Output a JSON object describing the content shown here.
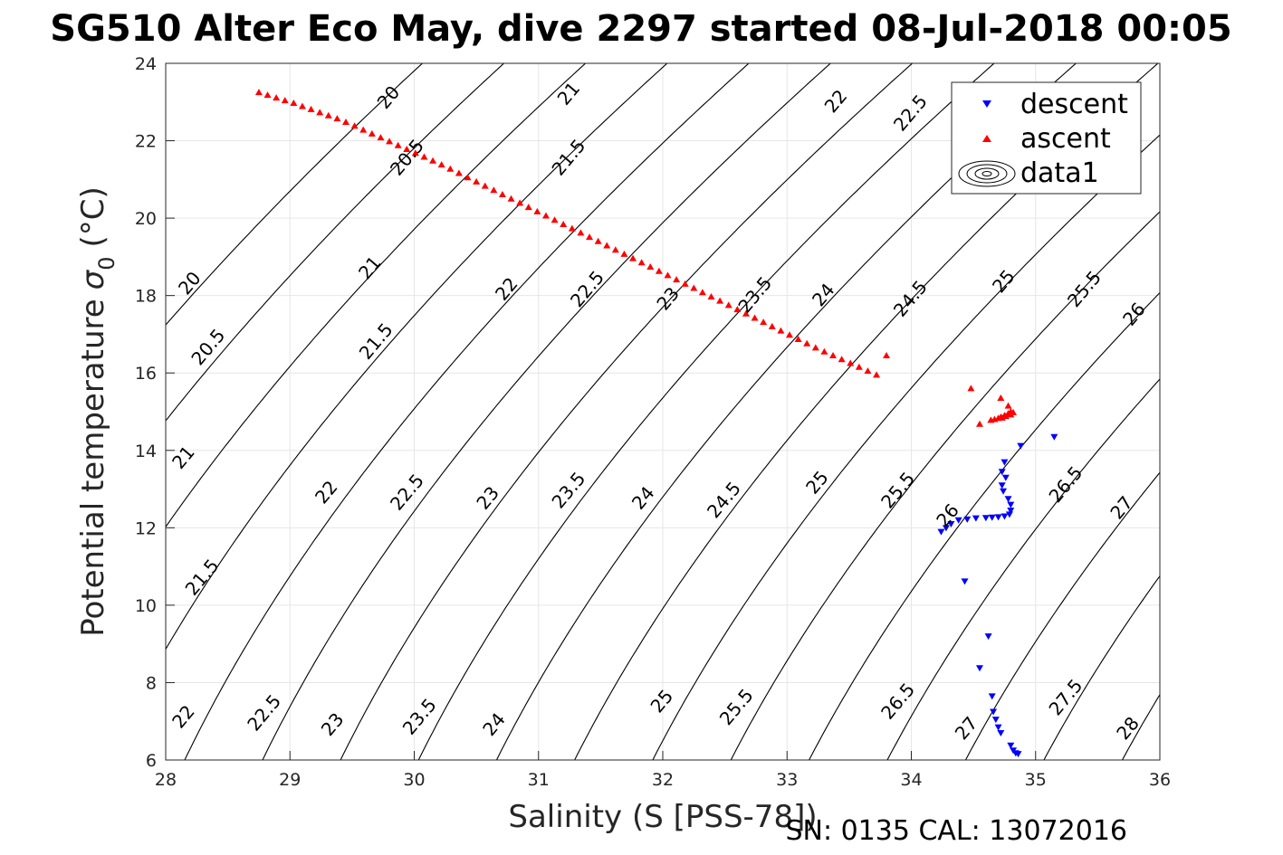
{
  "chart_data": {
    "type": "scatter",
    "title": "SG510 Alter Eco May, dive 2297 started 08-Jul-2018 00:05",
    "xlabel": "Salinity (S [PSS-78])",
    "ylabel": "Potential temperature",
    "ylabel_symbol": "σ",
    "ylabel_subscript": "0",
    "ylabel_unit": "(°C)",
    "xlim": [
      28,
      36
    ],
    "ylim": [
      6,
      24
    ],
    "xticks": [
      28,
      29,
      30,
      31,
      32,
      33,
      34,
      35,
      36
    ],
    "yticks": [
      6,
      8,
      10,
      12,
      14,
      16,
      18,
      20,
      22,
      24
    ],
    "grid": true,
    "legend_position": "top-right",
    "footer": "SN: 0135  CAL: 13072016",
    "legend": [
      {
        "label": "descent",
        "marker": "triangle-down",
        "color": "#0000ff"
      },
      {
        "label": "ascent",
        "marker": "triangle-up",
        "color": "#ff0000"
      },
      {
        "label": "data1",
        "marker": "contour",
        "color": "#000000"
      }
    ],
    "contour_levels": [
      20,
      20.5,
      21,
      21.5,
      22,
      22.5,
      23,
      23.5,
      24,
      24.5,
      25,
      25.5,
      26,
      26.5,
      27,
      27.5,
      28
    ],
    "contour_labels": [
      {
        "text": "20",
        "x": 29.8,
        "y": 23.1
      },
      {
        "text": "21",
        "x": 31.25,
        "y": 23.2
      },
      {
        "text": "22",
        "x": 33.4,
        "y": 23.0
      },
      {
        "text": "22.5",
        "x": 34.0,
        "y": 22.7
      },
      {
        "text": "23",
        "x": 34.8,
        "y": 22.1
      },
      {
        "text": "22",
        "x": 35.3,
        "y": 22.0
      },
      {
        "text": "20.5",
        "x": 29.95,
        "y": 21.55
      },
      {
        "text": "21.5",
        "x": 31.25,
        "y": 21.55
      },
      {
        "text": "20",
        "x": 28.2,
        "y": 18.3
      },
      {
        "text": "21",
        "x": 29.65,
        "y": 18.7
      },
      {
        "text": "22",
        "x": 30.75,
        "y": 18.15
      },
      {
        "text": "22.5",
        "x": 31.4,
        "y": 18.15
      },
      {
        "text": "23",
        "x": 32.05,
        "y": 17.9
      },
      {
        "text": "23.5",
        "x": 32.75,
        "y": 18.0
      },
      {
        "text": "24",
        "x": 33.3,
        "y": 18.0
      },
      {
        "text": "24.5",
        "x": 34.0,
        "y": 17.9
      },
      {
        "text": "25",
        "x": 34.75,
        "y": 18.35
      },
      {
        "text": "25.5",
        "x": 35.4,
        "y": 18.15
      },
      {
        "text": "26",
        "x": 35.8,
        "y": 17.5
      },
      {
        "text": "20.5",
        "x": 28.35,
        "y": 16.65
      },
      {
        "text": "21.5",
        "x": 29.7,
        "y": 16.8
      },
      {
        "text": "21",
        "x": 28.15,
        "y": 13.8
      },
      {
        "text": "22",
        "x": 29.3,
        "y": 12.9
      },
      {
        "text": "22.5",
        "x": 29.95,
        "y": 12.9
      },
      {
        "text": "23",
        "x": 30.6,
        "y": 12.75
      },
      {
        "text": "23.5",
        "x": 31.25,
        "y": 12.95
      },
      {
        "text": "24",
        "x": 31.85,
        "y": 12.75
      },
      {
        "text": "24.5",
        "x": 32.5,
        "y": 12.7
      },
      {
        "text": "25",
        "x": 33.25,
        "y": 13.15
      },
      {
        "text": "25.5",
        "x": 33.9,
        "y": 12.95
      },
      {
        "text": "26",
        "x": 34.3,
        "y": 12.3
      },
      {
        "text": "26.5",
        "x": 35.25,
        "y": 13.1
      },
      {
        "text": "27",
        "x": 35.7,
        "y": 12.5
      },
      {
        "text": "21.5",
        "x": 28.3,
        "y": 10.7
      },
      {
        "text": "22",
        "x": 28.15,
        "y": 7.1
      },
      {
        "text": "22.5",
        "x": 28.8,
        "y": 7.2
      },
      {
        "text": "23",
        "x": 29.35,
        "y": 6.9
      },
      {
        "text": "23.5",
        "x": 30.05,
        "y": 7.1
      },
      {
        "text": "24",
        "x": 30.65,
        "y": 6.9
      },
      {
        "text": "25",
        "x": 32.0,
        "y": 7.5
      },
      {
        "text": "25.5",
        "x": 32.6,
        "y": 7.35
      },
      {
        "text": "26.5",
        "x": 33.9,
        "y": 7.5
      },
      {
        "text": "27",
        "x": 34.45,
        "y": 6.8
      },
      {
        "text": "27.5",
        "x": 35.25,
        "y": 7.6
      },
      {
        "text": "28",
        "x": 35.75,
        "y": 6.8
      }
    ],
    "series": [
      {
        "name": "descent",
        "color": "#0000ff",
        "marker": "triangle-down",
        "points": [
          [
            35.15,
            14.35
          ],
          [
            34.88,
            14.12
          ],
          [
            34.75,
            13.7
          ],
          [
            34.73,
            13.45
          ],
          [
            34.76,
            13.3
          ],
          [
            34.73,
            13.1
          ],
          [
            34.74,
            12.95
          ],
          [
            34.78,
            12.75
          ],
          [
            34.8,
            12.6
          ],
          [
            34.8,
            12.45
          ],
          [
            34.79,
            12.35
          ],
          [
            34.75,
            12.3
          ],
          [
            34.7,
            12.28
          ],
          [
            34.65,
            12.27
          ],
          [
            34.6,
            12.26
          ],
          [
            34.52,
            12.25
          ],
          [
            34.45,
            12.22
          ],
          [
            34.38,
            12.2
          ],
          [
            34.32,
            12.1
          ],
          [
            34.28,
            12.0
          ],
          [
            34.24,
            11.9
          ],
          [
            34.43,
            10.62
          ],
          [
            34.62,
            9.2
          ],
          [
            34.55,
            8.38
          ],
          [
            34.65,
            7.65
          ],
          [
            34.66,
            7.25
          ],
          [
            34.68,
            7.05
          ],
          [
            34.7,
            6.85
          ],
          [
            34.72,
            6.7
          ],
          [
            34.8,
            6.38
          ],
          [
            34.82,
            6.25
          ],
          [
            34.84,
            6.18
          ],
          [
            34.86,
            6.16
          ]
        ]
      },
      {
        "name": "ascent",
        "color": "#ff0000",
        "marker": "triangle-up",
        "points": [
          [
            28.75,
            23.25
          ],
          [
            28.82,
            23.18
          ],
          [
            28.89,
            23.11
          ],
          [
            28.96,
            23.04
          ],
          [
            29.03,
            22.97
          ],
          [
            29.1,
            22.89
          ],
          [
            29.17,
            22.81
          ],
          [
            29.24,
            22.73
          ],
          [
            29.31,
            22.65
          ],
          [
            29.38,
            22.57
          ],
          [
            29.45,
            22.48
          ],
          [
            29.52,
            22.38
          ],
          [
            29.59,
            22.28
          ],
          [
            29.66,
            22.18
          ],
          [
            29.73,
            22.08
          ],
          [
            29.8,
            21.98
          ],
          [
            29.87,
            21.88
          ],
          [
            29.94,
            21.78
          ],
          [
            30.01,
            21.68
          ],
          [
            30.08,
            21.58
          ],
          [
            30.15,
            21.48
          ],
          [
            30.22,
            21.38
          ],
          [
            30.29,
            21.27
          ],
          [
            30.36,
            21.16
          ],
          [
            30.43,
            21.05
          ],
          [
            30.5,
            20.94
          ],
          [
            30.57,
            20.83
          ],
          [
            30.64,
            20.72
          ],
          [
            30.71,
            20.61
          ],
          [
            30.78,
            20.5
          ],
          [
            30.85,
            20.39
          ],
          [
            30.92,
            20.28
          ],
          [
            30.99,
            20.17
          ],
          [
            31.06,
            20.06
          ],
          [
            31.13,
            19.95
          ],
          [
            31.2,
            19.84
          ],
          [
            31.27,
            19.73
          ],
          [
            31.34,
            19.62
          ],
          [
            31.41,
            19.51
          ],
          [
            31.48,
            19.4
          ],
          [
            31.55,
            19.29
          ],
          [
            31.62,
            19.18
          ],
          [
            31.69,
            19.07
          ],
          [
            31.76,
            18.96
          ],
          [
            31.83,
            18.85
          ],
          [
            31.9,
            18.74
          ],
          [
            31.97,
            18.63
          ],
          [
            32.04,
            18.52
          ],
          [
            32.11,
            18.41
          ],
          [
            32.18,
            18.3
          ],
          [
            32.25,
            18.19
          ],
          [
            32.32,
            18.08
          ],
          [
            32.39,
            17.97
          ],
          [
            32.46,
            17.86
          ],
          [
            32.53,
            17.75
          ],
          [
            32.6,
            17.64
          ],
          [
            32.67,
            17.53
          ],
          [
            32.74,
            17.42
          ],
          [
            32.81,
            17.31
          ],
          [
            32.88,
            17.2
          ],
          [
            32.95,
            17.09
          ],
          [
            33.02,
            16.98
          ],
          [
            33.09,
            16.87
          ],
          [
            33.16,
            16.76
          ],
          [
            33.23,
            16.65
          ],
          [
            33.3,
            16.55
          ],
          [
            33.37,
            16.45
          ],
          [
            33.44,
            16.35
          ],
          [
            33.51,
            16.25
          ],
          [
            33.58,
            16.15
          ],
          [
            33.65,
            16.05
          ],
          [
            33.72,
            15.95
          ],
          [
            33.8,
            16.45
          ],
          [
            34.48,
            15.6
          ],
          [
            34.55,
            14.68
          ],
          [
            34.72,
            15.35
          ],
          [
            34.78,
            15.15
          ],
          [
            34.8,
            15.0
          ],
          [
            34.78,
            14.95
          ],
          [
            34.75,
            14.9
          ],
          [
            34.72,
            14.86
          ],
          [
            34.7,
            14.83
          ],
          [
            34.67,
            14.8
          ],
          [
            34.64,
            14.78
          ],
          [
            34.82,
            14.98
          ],
          [
            34.8,
            14.92
          ],
          [
            34.76,
            14.88
          ],
          [
            34.73,
            14.84
          ]
        ]
      }
    ]
  }
}
